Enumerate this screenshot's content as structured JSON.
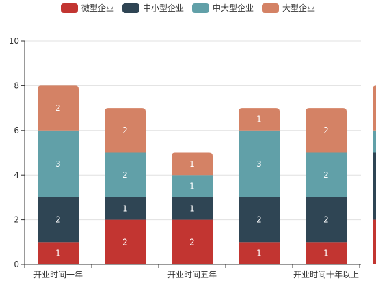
{
  "chart_data": {
    "type": "bar",
    "stacked": true,
    "categories": [
      "开业时间一年",
      "",
      "开业时间五年",
      "",
      "开业时间十年以上",
      ""
    ],
    "series": [
      {
        "name": "微型企业",
        "color": "#c23531",
        "values": [
          1,
          2,
          2,
          1,
          1,
          2
        ]
      },
      {
        "name": "中小型企业",
        "color": "#2f4554",
        "values": [
          2,
          1,
          1,
          2,
          2,
          3
        ]
      },
      {
        "name": "中大型企业",
        "color": "#61a0a8",
        "values": [
          3,
          2,
          1,
          3,
          2,
          1
        ]
      },
      {
        "name": "大型企业",
        "color": "#d48265",
        "values": [
          2,
          2,
          1,
          1,
          2,
          2
        ]
      }
    ],
    "ylim": [
      0,
      10
    ],
    "yticks": [
      0,
      2,
      4,
      6,
      8,
      10
    ],
    "grid": true,
    "legend": "top-center",
    "data_labels": true
  }
}
